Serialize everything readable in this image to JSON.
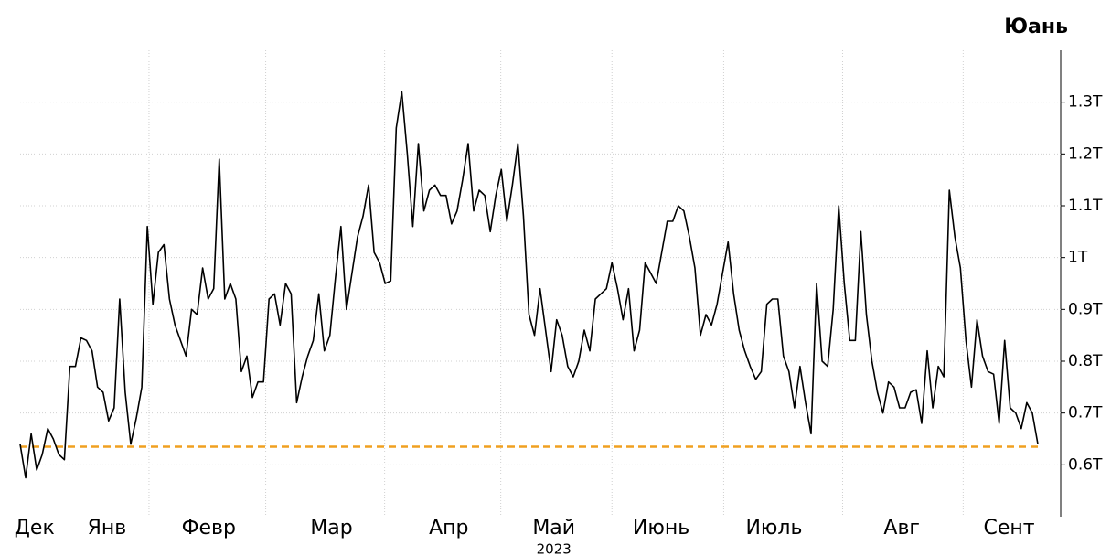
{
  "chart_data": {
    "type": "line",
    "title": "Юань",
    "series": [
      {
        "color": "#000000",
        "values": [
          0.64,
          0.575,
          0.66,
          0.59,
          0.62,
          0.67,
          0.65,
          0.62,
          0.61,
          0.79,
          0.79,
          0.845,
          0.84,
          0.82,
          0.75,
          0.74,
          0.685,
          0.71,
          0.92,
          0.74,
          0.64,
          0.69,
          0.75,
          1.06,
          0.91,
          1.01,
          1.025,
          0.92,
          0.87,
          0.84,
          0.81,
          0.9,
          0.89,
          0.98,
          0.92,
          0.94,
          1.19,
          0.92,
          0.95,
          0.92,
          0.78,
          0.81,
          0.73,
          0.76,
          0.76,
          0.92,
          0.93,
          0.87,
          0.95,
          0.93,
          0.72,
          0.77,
          0.81,
          0.84,
          0.93,
          0.82,
          0.85,
          0.96,
          1.06,
          0.9,
          0.97,
          1.04,
          1.08,
          1.14,
          1.01,
          0.99,
          0.95,
          0.955,
          1.25,
          1.32,
          1.2,
          1.06,
          1.22,
          1.09,
          1.13,
          1.14,
          1.12,
          1.12,
          1.065,
          1.09,
          1.15,
          1.22,
          1.09,
          1.13,
          1.12,
          1.05,
          1.12,
          1.17,
          1.07,
          1.14,
          1.22,
          1.08,
          0.89,
          0.85,
          0.94,
          0.86,
          0.78,
          0.88,
          0.85,
          0.79,
          0.77,
          0.8,
          0.86,
          0.82,
          0.92,
          0.93,
          0.94,
          0.99,
          0.94,
          0.88,
          0.94,
          0.82,
          0.86,
          0.99,
          0.97,
          0.95,
          1.01,
          1.07,
          1.07,
          1.1,
          1.09,
          1.04,
          0.98,
          0.85,
          0.89,
          0.87,
          0.91,
          0.97,
          1.03,
          0.93,
          0.86,
          0.82,
          0.79,
          0.765,
          0.78,
          0.91,
          0.92,
          0.92,
          0.81,
          0.78,
          0.71,
          0.79,
          0.72,
          0.66,
          0.95,
          0.8,
          0.79,
          0.9,
          1.1,
          0.95,
          0.84,
          0.84,
          1.05,
          0.89,
          0.8,
          0.74,
          0.7,
          0.76,
          0.75,
          0.71,
          0.71,
          0.74,
          0.745,
          0.68,
          0.82,
          0.71,
          0.79,
          0.77,
          1.13,
          1.04,
          0.98,
          0.84,
          0.75,
          0.88,
          0.81,
          0.78,
          0.775,
          0.68,
          0.84,
          0.71,
          0.7,
          0.67,
          0.72,
          0.7,
          0.64
        ]
      }
    ],
    "xlim": [
      0,
      184
    ],
    "xticks": [
      {
        "value": 2.6,
        "label": "Дек"
      },
      {
        "value": 15.7,
        "label": "Янв"
      },
      {
        "value": 34.1,
        "label": "Февр"
      },
      {
        "value": 56.3,
        "label": "Мар"
      },
      {
        "value": 77.5,
        "label": "Апр"
      },
      {
        "value": 96.5,
        "label": "Май"
      },
      {
        "value": 115.9,
        "label": "Июнь"
      },
      {
        "value": 136.3,
        "label": "Июль"
      },
      {
        "value": 159.4,
        "label": "Авг"
      },
      {
        "value": 178.8,
        "label": "Сент"
      }
    ],
    "x_sublabel": "2023",
    "xgrid": [
      23.3,
      44.4,
      65.9,
      86.9,
      107,
      127.2,
      148.7,
      170.5
    ],
    "ylim": [
      0.5,
      1.4
    ],
    "yticks": [
      {
        "value": 0.6,
        "label": "0.6T"
      },
      {
        "value": 0.7,
        "label": "0.7T"
      },
      {
        "value": 0.8,
        "label": "0.8T"
      },
      {
        "value": 0.9,
        "label": "0.9T"
      },
      {
        "value": 1,
        "label": "1T"
      },
      {
        "value": 1.1,
        "label": "1.1T"
      },
      {
        "value": 1.2,
        "label": "1.2T"
      },
      {
        "value": 1.3,
        "label": "1.3T"
      }
    ],
    "grid": true,
    "reference_line": {
      "value": 0.635,
      "color": "#f0a020"
    }
  }
}
